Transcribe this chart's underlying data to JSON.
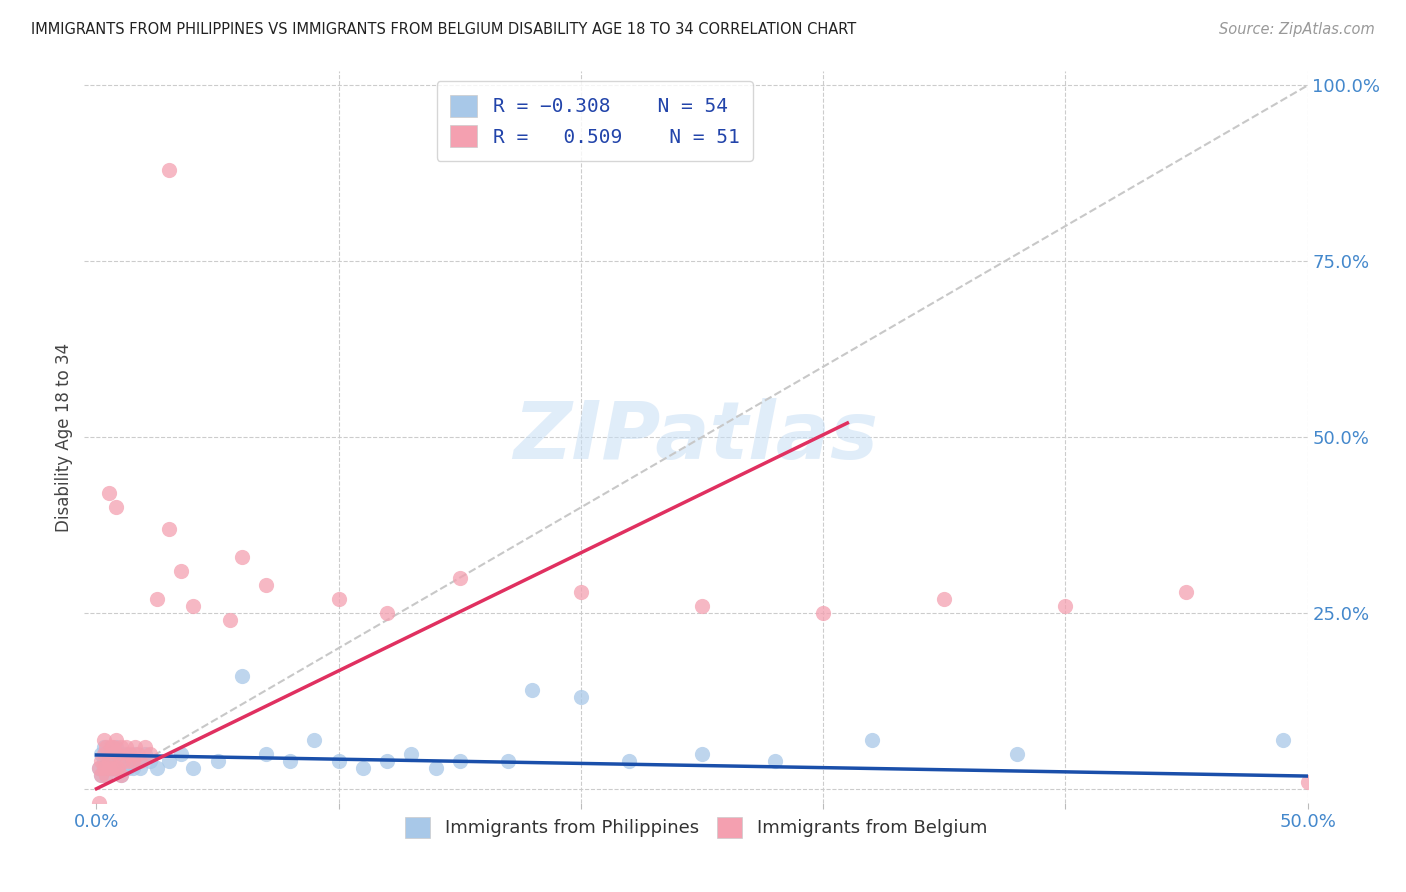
{
  "title": "IMMIGRANTS FROM PHILIPPINES VS IMMIGRANTS FROM BELGIUM DISABILITY AGE 18 TO 34 CORRELATION CHART",
  "source": "Source: ZipAtlas.com",
  "ylabel": "Disability Age 18 to 34",
  "blue_color": "#a8c8e8",
  "pink_color": "#f4a0b0",
  "blue_line_color": "#1a4faa",
  "pink_line_color": "#e03060",
  "diagonal_color": "#c8c8c8",
  "background_color": "#ffffff",
  "legend_label_blue": "Immigrants from Philippines",
  "legend_label_pink": "Immigrants from Belgium",
  "xlim": [
    0.0,
    0.5
  ],
  "ylim": [
    0.0,
    1.0
  ],
  "blue_trend_x": [
    0.0,
    0.5
  ],
  "blue_trend_y": [
    0.048,
    0.018
  ],
  "pink_trend_x": [
    0.0,
    0.31
  ],
  "pink_trend_y": [
    0.0,
    0.52
  ],
  "blue_scatter_x": [
    0.001,
    0.002,
    0.002,
    0.003,
    0.003,
    0.003,
    0.004,
    0.004,
    0.005,
    0.005,
    0.006,
    0.006,
    0.007,
    0.007,
    0.008,
    0.008,
    0.009,
    0.009,
    0.01,
    0.01,
    0.011,
    0.012,
    0.013,
    0.014,
    0.015,
    0.016,
    0.017,
    0.018,
    0.02,
    0.022,
    0.025,
    0.03,
    0.035,
    0.04,
    0.05,
    0.06,
    0.07,
    0.08,
    0.09,
    0.1,
    0.11,
    0.12,
    0.13,
    0.14,
    0.15,
    0.17,
    0.18,
    0.2,
    0.22,
    0.25,
    0.28,
    0.32,
    0.38,
    0.49
  ],
  "blue_scatter_y": [
    0.03,
    0.05,
    0.02,
    0.04,
    0.03,
    0.06,
    0.05,
    0.02,
    0.04,
    0.03,
    0.05,
    0.03,
    0.04,
    0.05,
    0.03,
    0.06,
    0.04,
    0.03,
    0.05,
    0.02,
    0.04,
    0.05,
    0.03,
    0.04,
    0.03,
    0.05,
    0.04,
    0.03,
    0.05,
    0.04,
    0.03,
    0.04,
    0.05,
    0.03,
    0.04,
    0.16,
    0.05,
    0.04,
    0.07,
    0.04,
    0.03,
    0.04,
    0.05,
    0.03,
    0.04,
    0.04,
    0.14,
    0.13,
    0.04,
    0.05,
    0.04,
    0.07,
    0.05,
    0.07
  ],
  "pink_scatter_x": [
    0.001,
    0.002,
    0.002,
    0.003,
    0.003,
    0.003,
    0.004,
    0.004,
    0.005,
    0.005,
    0.006,
    0.006,
    0.007,
    0.007,
    0.008,
    0.008,
    0.009,
    0.009,
    0.01,
    0.01,
    0.011,
    0.012,
    0.013,
    0.014,
    0.015,
    0.016,
    0.017,
    0.018,
    0.02,
    0.022,
    0.025,
    0.03,
    0.035,
    0.04,
    0.055,
    0.07,
    0.1,
    0.12,
    0.15,
    0.2,
    0.25,
    0.3,
    0.35,
    0.4,
    0.45,
    0.5,
    0.03,
    0.005,
    0.008,
    0.06,
    0.001
  ],
  "pink_scatter_y": [
    0.03,
    0.04,
    0.02,
    0.05,
    0.03,
    0.07,
    0.06,
    0.02,
    0.04,
    0.03,
    0.06,
    0.03,
    0.05,
    0.06,
    0.03,
    0.07,
    0.05,
    0.03,
    0.06,
    0.02,
    0.04,
    0.06,
    0.04,
    0.05,
    0.04,
    0.06,
    0.05,
    0.04,
    0.06,
    0.05,
    0.27,
    0.37,
    0.31,
    0.26,
    0.24,
    0.29,
    0.27,
    0.25,
    0.3,
    0.28,
    0.26,
    0.25,
    0.27,
    0.26,
    0.28,
    0.01,
    0.88,
    0.42,
    0.4,
    0.33,
    -0.02
  ]
}
